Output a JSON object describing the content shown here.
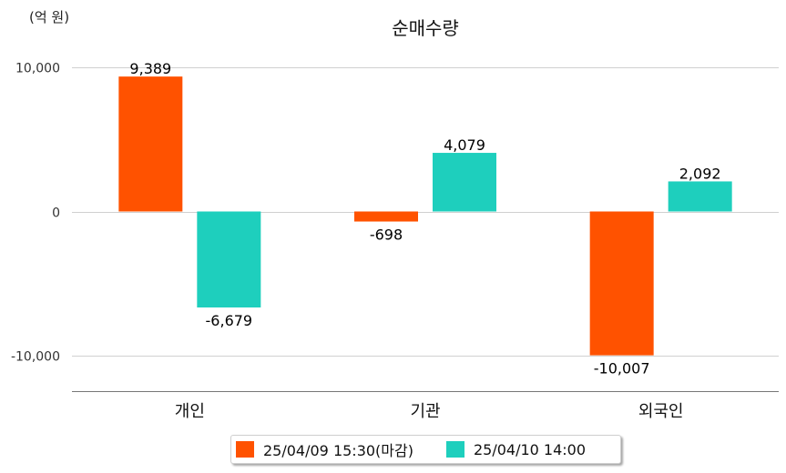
{
  "chart_data": {
    "type": "bar",
    "title": "순매수량",
    "unit_label": "(억 원)",
    "categories": [
      "개인",
      "기관",
      "외국인"
    ],
    "series": [
      {
        "name": "25/04/09 15:30(마감)",
        "color": "#ff5200",
        "values": [
          9389,
          -698,
          -10007
        ]
      },
      {
        "name": "25/04/10 14:00",
        "color": "#1ecfbd",
        "values": [
          -6679,
          4079,
          2092
        ]
      }
    ],
    "value_labels": [
      [
        "9,389",
        "-698",
        "-10,007"
      ],
      [
        "-6,679",
        "4,079",
        "2,092"
      ]
    ],
    "y_ticks": [
      {
        "value": 10000,
        "label": "10,000"
      },
      {
        "value": 0,
        "label": "0"
      },
      {
        "value": -10000,
        "label": "-10,000"
      }
    ],
    "ylim": [
      -12500,
      10000
    ],
    "grid": true,
    "legend_position": "bottom"
  }
}
